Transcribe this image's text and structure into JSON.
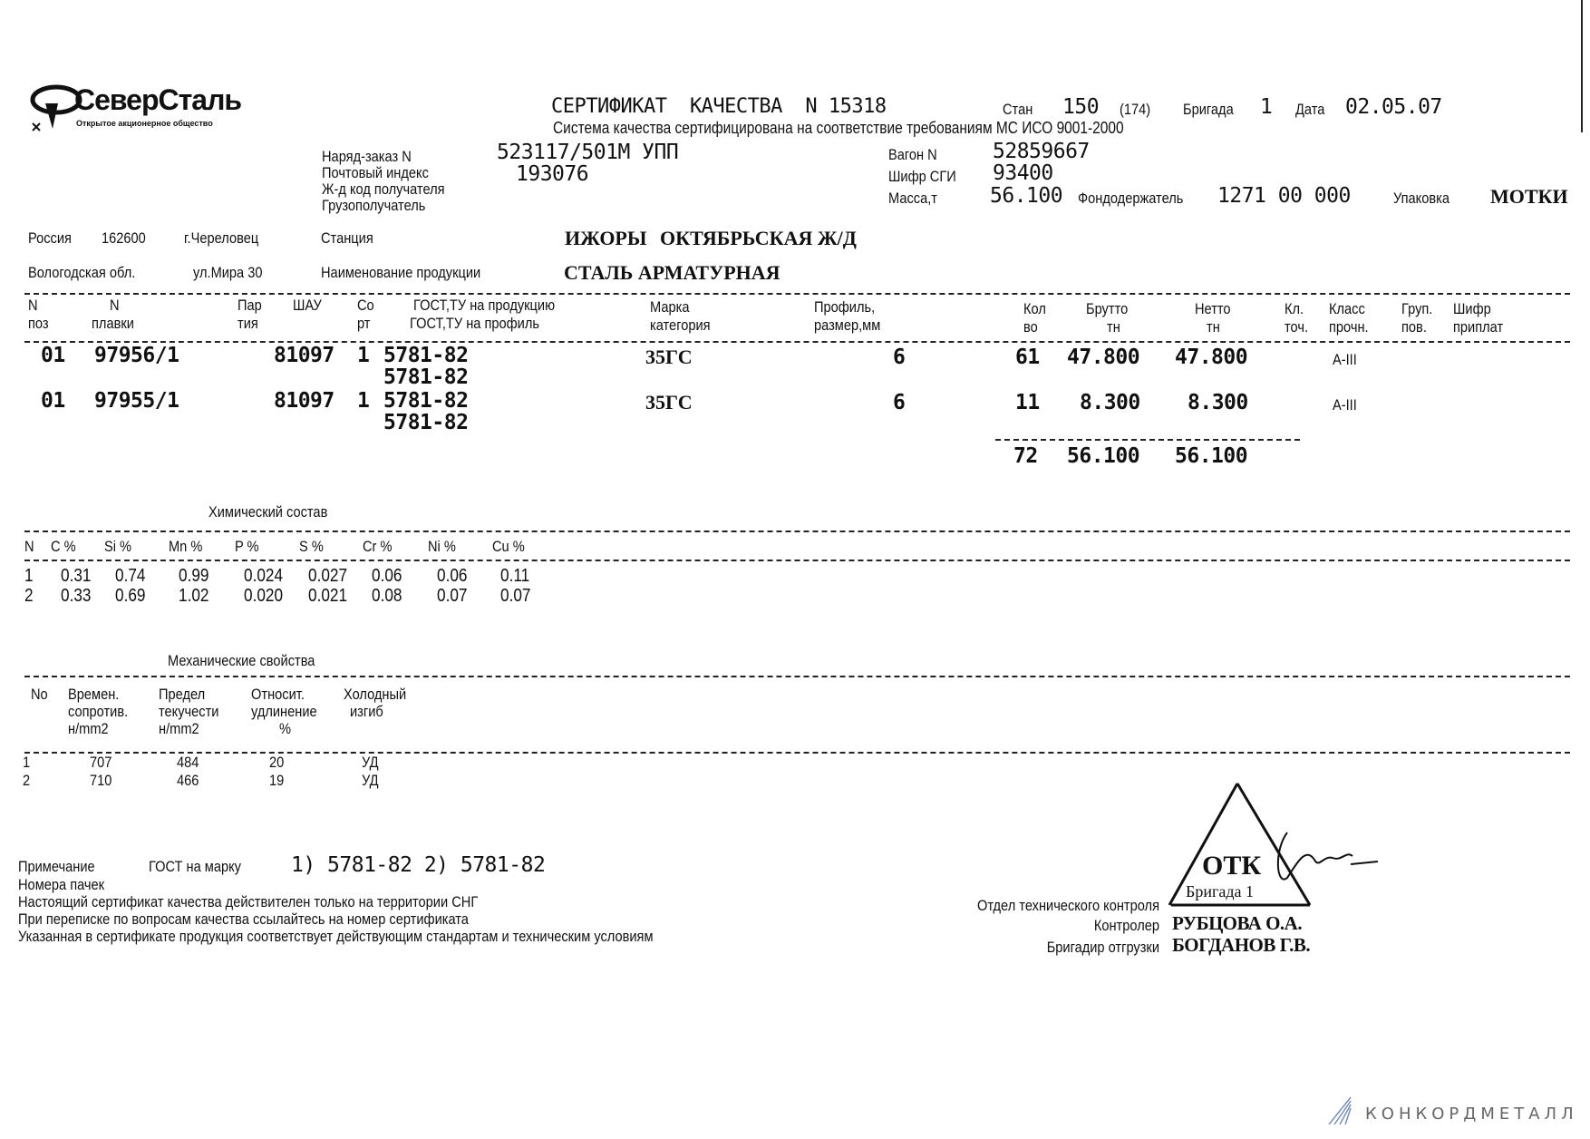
{
  "logo": {
    "name": "СеверСталь",
    "subtitle": "Открытое акционерное общество"
  },
  "header": {
    "title": "СЕРТИФИКАТ  КАЧЕСТВА  N 15318",
    "stan_label": "Стан",
    "stan": "150",
    "stan_extra": "(174)",
    "brigada_label": "Бригада",
    "brigada": "1",
    "date_label": "Дата",
    "date": "02.05.07",
    "quality_system": "Система качества сертифицирована на соответствие требованиям МС ИСО 9001-2000"
  },
  "order": {
    "order_label": "Наряд-заказ N",
    "order": "523117/501М УПП",
    "postal_label": "Почтовый индекс",
    "postal": "193076",
    "rail_code_label": "Ж-д код получателя",
    "consignee_label": "Грузополучатель",
    "wagon_label": "Вагон N",
    "wagon": "52859667",
    "sgi_label": "Шифр СГИ",
    "sgi": "93400",
    "mass_label": "Масса,т",
    "mass": "56.100",
    "fund_label": "Фондодержатель",
    "fund": "1271 00 000",
    "packing_label": "Упаковка",
    "packing": "МОТКИ"
  },
  "address": {
    "country": "Россия",
    "zip": "162600",
    "city": "г.Череловец",
    "station_label": "Станция",
    "station": "ИЖОРЫ",
    "railway": "ОКТЯБРЬСКАЯ Ж/Д",
    "region": "Вологодская обл.",
    "street": "ул.Мира 30",
    "product_label": "Наименование продукции",
    "product": "СТАЛЬ АРМАТУРНАЯ"
  },
  "main_table": {
    "headers": {
      "pos": [
        "N",
        "поз"
      ],
      "melt": [
        "N",
        "плавки"
      ],
      "batch": [
        "Пар",
        "тия"
      ],
      "shau": [
        "ШАУ",
        ""
      ],
      "sort": [
        "Со",
        "рт"
      ],
      "gost": [
        "ГОСТ,ТУ на продукцию",
        "ГОСТ,ТУ на профиль"
      ],
      "grade": [
        "Марка",
        "категория"
      ],
      "profile": [
        "Профиль,",
        "размер,мм"
      ],
      "qty": [
        "Кол",
        "во"
      ],
      "gross": [
        "Брутто",
        "тн"
      ],
      "net": [
        "Нетто",
        "тн"
      ],
      "acc": [
        "Кл.",
        "точ."
      ],
      "strength": [
        "Класс",
        "прочн."
      ],
      "group": [
        "Груп.",
        "пов."
      ],
      "code": [
        "Шифр",
        "приплат"
      ]
    },
    "rows": [
      {
        "pos": "01",
        "melt": "97956/1",
        "shau": "81097",
        "sort": "1",
        "gost_product": "5781-82",
        "gost_profile": "5781-82",
        "grade": "35ГС",
        "profile": "6",
        "qty": "61",
        "gross": "47.800",
        "net": "47.800",
        "strength": "A-III"
      },
      {
        "pos": "01",
        "melt": "97955/1",
        "shau": "81097",
        "sort": "1",
        "gost_product": "5781-82",
        "gost_profile": "5781-82",
        "grade": "35ГС",
        "profile": "6",
        "qty": "11",
        "gross": "8.300",
        "net": "8.300",
        "strength": "A-III"
      }
    ],
    "totals": {
      "qty": "72",
      "gross": "56.100",
      "net": "56.100"
    }
  },
  "chemistry": {
    "title": "Химический состав",
    "headers": [
      "N",
      "C %",
      "Si %",
      "Mn %",
      "P %",
      "S %",
      "Cr %",
      "Ni %",
      "Cu %"
    ],
    "rows": [
      [
        "1",
        "0.31",
        "0.74",
        "0.99",
        "0.024",
        "0.027",
        "0.06",
        "0.06",
        "0.11"
      ],
      [
        "2",
        "0.33",
        "0.69",
        "1.02",
        "0.020",
        "0.021",
        "0.08",
        "0.07",
        "0.07"
      ]
    ]
  },
  "mechanics": {
    "title": "Механические свойства",
    "headers": [
      [
        "No",
        "",
        ""
      ],
      [
        "Времен.",
        "сопротив.",
        "н/mm2"
      ],
      [
        "Предел",
        "текучести",
        "н/mm2"
      ],
      [
        "Относит.",
        "удлинение",
        "%"
      ],
      [
        "Холодный",
        "изгиб",
        ""
      ]
    ],
    "rows": [
      [
        "1",
        "707",
        "484",
        "20",
        "УД"
      ],
      [
        "2",
        "710",
        "466",
        "19",
        "УД"
      ]
    ]
  },
  "notes": {
    "note_label": "Примечание",
    "gost_grade_label": "ГОСТ на марку",
    "gost_grade": "1) 5781-82 2) 5781-82",
    "pack_numbers_label": "Номера пачек",
    "line1": "Настоящий сертификат качества действителен только на территории СНГ",
    "line2": "При переписке по вопросам качества ссылайтесь на номер сертификата",
    "line3": "Указанная в сертификате продукция соответствует действующим стандартам и техническим условиям"
  },
  "signatures": {
    "dept": "Отдел технического контроля",
    "controller_label": "Контролер",
    "controller": "РУБЦОВА О.А.",
    "foreman_label": "Бригадир отгрузки",
    "foreman": "БОГДАНОВ Г.В.",
    "stamp_title": "ОТК",
    "stamp_sub": "Бригада 1"
  },
  "watermark": "КОНКОРДМЕТАЛЛ"
}
